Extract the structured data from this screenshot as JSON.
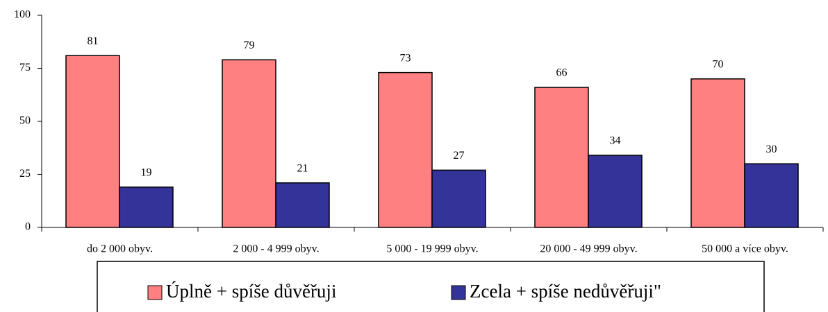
{
  "chart_data": {
    "type": "bar",
    "categories": [
      "do 2 000 obyv.",
      "2 000 - 4 999 obyv.",
      "5 000 - 19 999 obyv.",
      "20 000 - 49 999 obyv.",
      "50 000 a více obyv."
    ],
    "series": [
      {
        "name": "Úplně + spíše důvěřuji",
        "color": "#ff8080",
        "values": [
          81,
          79,
          73,
          66,
          70
        ]
      },
      {
        "name": "Zcela + spíše nedůvěřuji\"",
        "color": "#333399",
        "values": [
          19,
          21,
          27,
          34,
          30
        ]
      }
    ],
    "ylim": [
      0,
      100
    ],
    "yticks": [
      0,
      25,
      50,
      75,
      100
    ],
    "grid": false,
    "legend": "bottom"
  }
}
